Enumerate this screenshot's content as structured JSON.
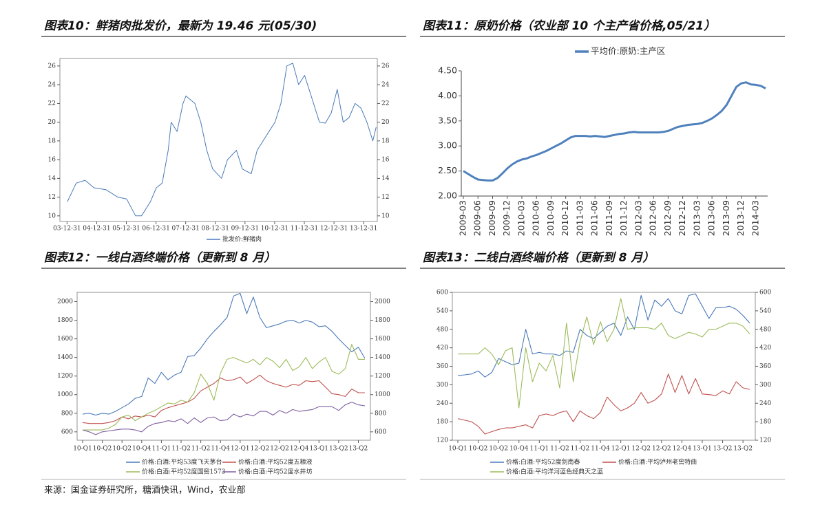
{
  "chart_data": [
    {
      "type": "line",
      "title": "图表10：鲜猪肉批发价，最新为 19.46 元(05/30)",
      "x": [
        2004.0,
        2004.3,
        2004.6,
        2004.9,
        2005.3,
        2005.7,
        2006.0,
        2006.3,
        2006.5,
        2006.8,
        2007.0,
        2007.2,
        2007.4,
        2007.5,
        2007.7,
        2007.9,
        2008.0,
        2008.3,
        2008.5,
        2008.7,
        2008.9,
        2009.2,
        2009.4,
        2009.7,
        2009.9,
        2010.2,
        2010.4,
        2010.6,
        2010.8,
        2011.0,
        2011.2,
        2011.4,
        2011.6,
        2011.8,
        2012.0,
        2012.3,
        2012.5,
        2012.7,
        2012.9,
        2013.1,
        2013.3,
        2013.5,
        2013.7,
        2013.9,
        2014.1,
        2014.3,
        2014.41
      ],
      "series": [
        {
          "name": "批发价:鲜猪肉",
          "color": "#4a7ab8",
          "values": [
            11.5,
            13.5,
            13.8,
            13.0,
            12.8,
            12.0,
            11.8,
            10.0,
            10.0,
            11.5,
            13.0,
            13.5,
            17.0,
            20.0,
            19.0,
            22.0,
            22.8,
            22.0,
            20.0,
            17.0,
            15.0,
            14.0,
            16.0,
            17.0,
            15.0,
            14.5,
            17.0,
            18.0,
            19.0,
            20.0,
            22.0,
            26.0,
            26.3,
            24.0,
            25.0,
            22.0,
            20.0,
            19.9,
            21.0,
            23.5,
            20.0,
            20.5,
            22.0,
            21.5,
            20.0,
            18.0,
            19.46
          ]
        }
      ],
      "xlim": [
        2003.75,
        2014.45
      ],
      "xticks": [
        {
          "value": 2003.99,
          "label": "03-12-31"
        },
        {
          "value": 2004.99,
          "label": "04-12-31"
        },
        {
          "value": 2005.99,
          "label": "05-12-31"
        },
        {
          "value": 2006.99,
          "label": "06-12-31"
        },
        {
          "value": 2007.99,
          "label": "07-12-31"
        },
        {
          "value": 2008.99,
          "label": "08-12-31"
        },
        {
          "value": 2009.99,
          "label": "09-12-31"
        },
        {
          "value": 2010.99,
          "label": "10-12-31"
        },
        {
          "value": 2011.99,
          "label": "11-12-31"
        },
        {
          "value": 2012.99,
          "label": "12-12-31"
        },
        {
          "value": 2013.99,
          "label": "13-12-31"
        }
      ],
      "ylim": [
        9.4,
        26.8
      ],
      "yticks": [
        10,
        12,
        14,
        16,
        18,
        20,
        22,
        24,
        26
      ],
      "mirror_yticks": true,
      "legend": "bottom"
    },
    {
      "type": "line",
      "title": "图表11：原奶价格（农业部 10 个主产省价格,05/21）",
      "categories": [
        "2009-03",
        null,
        null,
        "2009-06",
        null,
        null,
        "2009-09",
        null,
        null,
        "2009-12",
        null,
        null,
        "2010-03",
        null,
        null,
        "2010-06",
        null,
        null,
        "2010-09",
        null,
        null,
        "2010-12",
        null,
        null,
        "2011-03",
        null,
        null,
        "2011-06",
        null,
        null,
        "2011-09",
        null,
        null,
        "2011-12",
        null,
        null,
        "2012-03",
        null,
        null,
        "2012-06",
        null,
        null,
        "2012-09",
        null,
        null,
        "2012-12",
        null,
        null,
        "2013-03",
        null,
        null,
        "2013-06",
        null,
        null,
        "2013-09",
        null,
        null,
        "2013-12",
        null,
        null,
        "2014-03",
        null,
        null
      ],
      "series": [
        {
          "name": "平均价:原奶:主产区",
          "color": "#4f81bd",
          "values": [
            2.5,
            2.44,
            2.38,
            2.33,
            2.32,
            2.31,
            2.31,
            2.36,
            2.45,
            2.55,
            2.63,
            2.69,
            2.73,
            2.75,
            2.79,
            2.82,
            2.86,
            2.9,
            2.95,
            3.0,
            3.05,
            3.11,
            3.17,
            3.2,
            3.2,
            3.2,
            3.19,
            3.2,
            3.19,
            3.18,
            3.2,
            3.22,
            3.24,
            3.25,
            3.27,
            3.28,
            3.27,
            3.27,
            3.27,
            3.27,
            3.27,
            3.28,
            3.3,
            3.34,
            3.38,
            3.4,
            3.42,
            3.43,
            3.44,
            3.46,
            3.5,
            3.55,
            3.62,
            3.7,
            3.82,
            4.0,
            4.18,
            4.25,
            4.27,
            4.23,
            4.22,
            4.2,
            4.15
          ]
        }
      ],
      "ylim": [
        2,
        4.5
      ],
      "yticks": [
        {
          "value": 2,
          "label": "2.00"
        },
        {
          "value": 2.5,
          "label": "2.50"
        },
        {
          "value": 3,
          "label": "3.00"
        },
        {
          "value": 3.5,
          "label": "3.50"
        },
        {
          "value": 4,
          "label": "4.00"
        },
        {
          "value": 4.5,
          "label": "4.50"
        }
      ],
      "mirror_yticks": false,
      "legend": "top"
    },
    {
      "type": "line",
      "title": "图表12：一线白酒终端价格（更新到 8 月）",
      "categories": [
        "10-Q1",
        null,
        null,
        "10-Q2",
        null,
        null,
        "10-Q2",
        null,
        null,
        "10-Q4",
        null,
        null,
        "11-Q1",
        null,
        null,
        "11-Q2",
        null,
        null,
        "11-Q2",
        null,
        null,
        "11-Q4",
        null,
        null,
        "12-Q1",
        null,
        null,
        "12-Q2",
        null,
        null,
        "12-Q2",
        null,
        null,
        "12-Q4",
        null,
        null,
        "13-Q1",
        null,
        null,
        "13-Q2",
        null,
        null,
        "13-Q2",
        null
      ],
      "series": [
        {
          "name": "价格:白酒:平均53度飞天茅台",
          "color": "#4a7ab8",
          "values": [
            790,
            800,
            780,
            800,
            790,
            820,
            860,
            900,
            960,
            980,
            1180,
            1120,
            1240,
            1160,
            1210,
            1240,
            1410,
            1420,
            1500,
            1600,
            1680,
            1750,
            1830,
            2060,
            2090,
            1870,
            2050,
            1830,
            1720,
            1740,
            1760,
            1790,
            1800,
            1770,
            1800,
            1780,
            1730,
            1740,
            1680,
            1600,
            1530,
            1460,
            1510,
            1390
          ]
        },
        {
          "name": "价格:白酒:平均52度五粮液",
          "color": "#c0504d",
          "values": [
            700,
            690,
            690,
            690,
            700,
            720,
            760,
            740,
            770,
            760,
            780,
            760,
            830,
            860,
            880,
            900,
            920,
            960,
            1040,
            1080,
            1120,
            1180,
            1150,
            1160,
            1190,
            1120,
            1160,
            1210,
            1150,
            1120,
            1100,
            1080,
            1110,
            1100,
            1150,
            1140,
            1150,
            1080,
            1010,
            1000,
            980,
            1060,
            1020,
            1020
          ]
        },
        {
          "name": "价格:白酒:平均52度国窖1573",
          "color": "#9bbb59",
          "values": [
            620,
            620,
            620,
            620,
            640,
            680,
            760,
            780,
            720,
            760,
            800,
            830,
            870,
            910,
            900,
            940,
            920,
            1020,
            1220,
            1120,
            940,
            1230,
            1380,
            1400,
            1370,
            1340,
            1380,
            1320,
            1400,
            1360,
            1290,
            1380,
            1260,
            1300,
            1400,
            1280,
            1350,
            1400,
            1250,
            1220,
            1280,
            1540,
            1380,
            1380
          ]
        },
        {
          "name": "价格:白酒:平均52度水井坊",
          "color": "#7f5fa0",
          "values": [
            620,
            600,
            570,
            600,
            610,
            620,
            630,
            630,
            620,
            600,
            660,
            690,
            700,
            720,
            710,
            740,
            690,
            750,
            700,
            750,
            760,
            720,
            730,
            790,
            760,
            790,
            770,
            820,
            820,
            780,
            830,
            800,
            840,
            820,
            830,
            840,
            870,
            870,
            870,
            830,
            890,
            920,
            890,
            880
          ]
        }
      ],
      "ylim": [
        510,
        2100
      ],
      "yticks": [
        600,
        800,
        1000,
        1200,
        1400,
        1600,
        1800,
        2000
      ],
      "mirror_yticks": true,
      "legend": "bottom"
    },
    {
      "type": "line",
      "title": "图表13：二线白酒终端价格（更新到 8 月）",
      "categories": [
        "10-Q1",
        null,
        null,
        "10-Q2",
        null,
        null,
        "10-Q2",
        null,
        null,
        "10-Q4",
        null,
        null,
        "11-Q1",
        null,
        null,
        "11-Q2",
        null,
        null,
        "11-Q2",
        null,
        null,
        "11-Q4",
        null,
        null,
        "12-Q1",
        null,
        null,
        "12-Q2",
        null,
        null,
        "12-Q2",
        null,
        null,
        "12-Q4",
        null,
        null,
        "13-Q1",
        null,
        null,
        "13-Q2",
        null,
        null,
        "13-Q2",
        null
      ],
      "series": [
        {
          "name": "价格:白酒:平均52度剑南春",
          "color": "#4a7ab8",
          "values": [
            330,
            332,
            335,
            345,
            325,
            340,
            385,
            375,
            365,
            370,
            480,
            400,
            405,
            400,
            400,
            395,
            410,
            405,
            480,
            460,
            450,
            470,
            490,
            500,
            460,
            520,
            480,
            590,
            510,
            575,
            555,
            580,
            540,
            530,
            590,
            595,
            555,
            515,
            550,
            550,
            555,
            545,
            525,
            500
          ]
        },
        {
          "name": "价格:白酒:平均泸州老窖特曲",
          "color": "#c0504d",
          "values": [
            190,
            185,
            180,
            165,
            140,
            148,
            155,
            160,
            160,
            165,
            170,
            160,
            200,
            205,
            200,
            210,
            215,
            180,
            215,
            200,
            190,
            210,
            260,
            235,
            215,
            225,
            240,
            275,
            240,
            250,
            270,
            335,
            275,
            330,
            270,
            320,
            270,
            268,
            265,
            280,
            270,
            310,
            290,
            285
          ]
        },
        {
          "name": "价格:白酒:平均洋河蓝色经典天之蓝",
          "color": "#9bbb59",
          "values": [
            400,
            400,
            400,
            400,
            420,
            400,
            365,
            410,
            420,
            225,
            420,
            310,
            370,
            345,
            395,
            290,
            500,
            310,
            440,
            520,
            430,
            505,
            440,
            480,
            580,
            480,
            485,
            485,
            485,
            480,
            500,
            460,
            450,
            460,
            470,
            465,
            455,
            480,
            480,
            490,
            500,
            500,
            490,
            465
          ]
        }
      ],
      "ylim": [
        120,
        600
      ],
      "yticks": [
        120,
        180,
        240,
        300,
        360,
        420,
        480,
        540,
        600
      ],
      "mirror_yticks": true,
      "legend": "bottom"
    }
  ],
  "source": "来源：国金证券研究所，糖酒快讯，Wind，农业部"
}
